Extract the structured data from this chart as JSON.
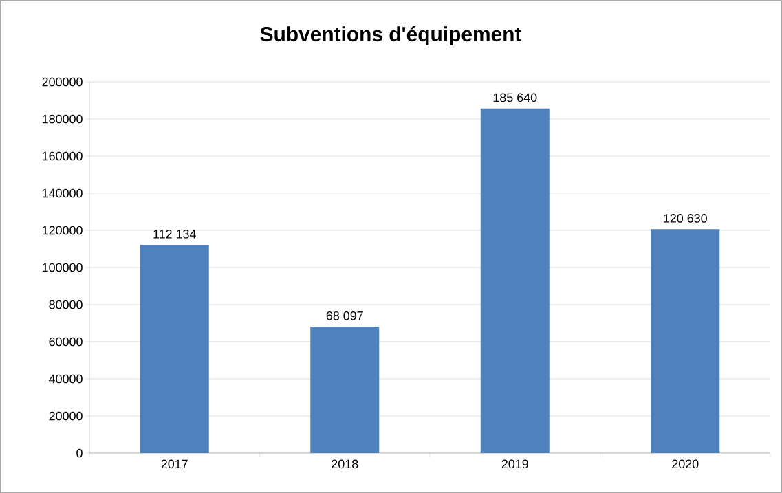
{
  "chart_data": {
    "type": "bar",
    "title": "Subventions d'équipement",
    "categories": [
      "2017",
      "2018",
      "2019",
      "2020"
    ],
    "values": [
      112134,
      68097,
      185640,
      120630
    ],
    "value_labels": [
      "112 134",
      "68 097",
      "185 640",
      "120 630"
    ],
    "color": "#4f81bd",
    "ylim": [
      0,
      200000
    ],
    "yticks": [
      0,
      20000,
      40000,
      60000,
      80000,
      100000,
      120000,
      140000,
      160000,
      180000,
      200000
    ],
    "grid": "y"
  }
}
